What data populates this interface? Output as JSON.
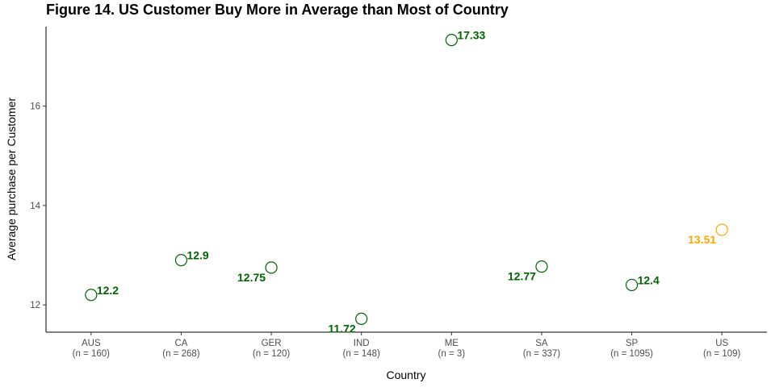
{
  "chart_data": {
    "type": "scatter",
    "title": "Figure 14. US Customer Buy More in Average than Most of Country",
    "xlabel": "Country",
    "ylabel": "Average purchase per Customer",
    "categories": [
      "AUS",
      "CA",
      "GER",
      "IND",
      "ME",
      "SA",
      "SP",
      "US"
    ],
    "category_counts": [
      "(n = 160)",
      "(n = 268)",
      "(n = 120)",
      "(n = 148)",
      "(n = 3)",
      "(n = 337)",
      "(n = 1095)",
      "(n = 109)"
    ],
    "values": [
      12.2,
      12.9,
      12.75,
      11.72,
      17.33,
      12.77,
      12.4,
      13.51
    ],
    "data_labels": [
      "12.2",
      "12.9",
      "12.75",
      "11.72",
      "17.33",
      "12.77",
      "12.4",
      "13.51"
    ],
    "label_side": [
      "right",
      "right",
      "left",
      "left",
      "right",
      "left",
      "right",
      "left"
    ],
    "highlight": [
      "normal",
      "normal",
      "normal",
      "normal",
      "normal",
      "normal",
      "normal",
      "highlight"
    ],
    "y_ticks": [
      12,
      14,
      16
    ],
    "ylim": [
      11.45,
      17.6
    ],
    "grid": false,
    "colors": {
      "normal": "#006400",
      "highlight": "#FFA500"
    }
  }
}
